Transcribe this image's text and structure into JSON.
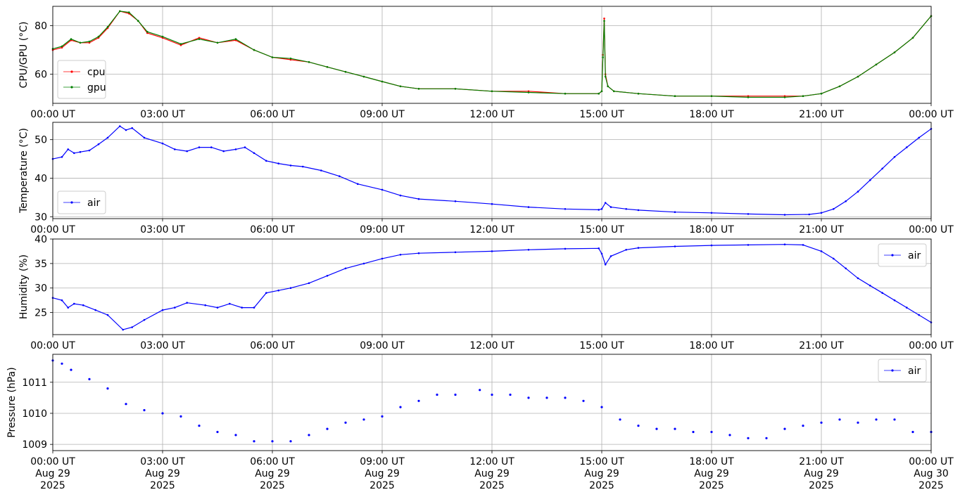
{
  "chart_data": [
    {
      "type": "line",
      "ylabel": "CPU/GPU (°C)",
      "ylim": [
        48,
        88
      ],
      "yticks": [
        60,
        80
      ],
      "xlim": [
        "2025-08-29T00:00",
        "2025-08-30T00:00"
      ],
      "xtick_labels": [
        "00:00 UT",
        "03:00 UT",
        "06:00 UT",
        "09:00 UT",
        "12:00 UT",
        "15:00 UT",
        "18:00 UT",
        "21:00 UT",
        "00:00 UT"
      ],
      "grid": true,
      "legend_position": "lower-left",
      "series": [
        {
          "name": "cpu",
          "color": "#ff0000",
          "x": [
            "2025-08-29T00:00",
            "2025-08-29T00:15",
            "2025-08-29T00:30",
            "2025-08-29T00:45",
            "2025-08-29T01:00",
            "2025-08-29T01:15",
            "2025-08-29T01:30",
            "2025-08-29T01:50",
            "2025-08-29T02:05",
            "2025-08-29T02:20",
            "2025-08-29T02:35",
            "2025-08-29T03:00",
            "2025-08-29T03:30",
            "2025-08-29T04:00",
            "2025-08-29T04:30",
            "2025-08-29T05:00",
            "2025-08-29T05:30",
            "2025-08-29T06:00",
            "2025-08-29T06:30",
            "2025-08-29T07:00",
            "2025-08-29T07:30",
            "2025-08-29T08:00",
            "2025-08-29T08:30",
            "2025-08-29T09:00",
            "2025-08-29T09:30",
            "2025-08-29T10:00",
            "2025-08-29T11:00",
            "2025-08-29T12:00",
            "2025-08-29T13:00",
            "2025-08-29T14:00",
            "2025-08-29T14:55",
            "2025-08-29T15:00",
            "2025-08-29T15:02",
            "2025-08-29T15:04",
            "2025-08-29T15:06",
            "2025-08-29T15:10",
            "2025-08-29T15:20",
            "2025-08-29T16:00",
            "2025-08-29T17:00",
            "2025-08-29T18:00",
            "2025-08-29T19:00",
            "2025-08-29T20:00",
            "2025-08-29T20:30",
            "2025-08-29T21:00",
            "2025-08-29T21:30",
            "2025-08-29T22:00",
            "2025-08-29T22:30",
            "2025-08-29T23:00",
            "2025-08-29T23:30",
            "2025-08-30T00:00"
          ],
          "y": [
            70,
            71,
            74,
            73,
            73,
            75,
            79,
            86,
            85,
            82,
            77,
            75,
            72,
            75,
            73,
            74,
            70,
            67,
            66,
            65,
            63,
            61,
            59,
            57,
            55,
            54,
            54,
            53,
            53,
            52,
            52,
            53,
            68,
            83,
            60,
            55,
            53,
            52,
            51,
            51,
            51,
            51,
            51,
            52,
            55,
            59,
            64,
            69,
            75,
            84
          ]
        },
        {
          "name": "gpu",
          "color": "#008000",
          "x": [
            "2025-08-29T00:00",
            "2025-08-29T00:15",
            "2025-08-29T00:30",
            "2025-08-29T00:45",
            "2025-08-29T01:00",
            "2025-08-29T01:15",
            "2025-08-29T01:30",
            "2025-08-29T01:50",
            "2025-08-29T02:05",
            "2025-08-29T02:20",
            "2025-08-29T02:35",
            "2025-08-29T03:00",
            "2025-08-29T03:30",
            "2025-08-29T04:00",
            "2025-08-29T04:30",
            "2025-08-29T05:00",
            "2025-08-29T05:30",
            "2025-08-29T06:00",
            "2025-08-29T06:30",
            "2025-08-29T07:00",
            "2025-08-29T07:30",
            "2025-08-29T08:00",
            "2025-08-29T08:30",
            "2025-08-29T09:00",
            "2025-08-29T09:30",
            "2025-08-29T10:00",
            "2025-08-29T11:00",
            "2025-08-29T12:00",
            "2025-08-29T13:00",
            "2025-08-29T14:00",
            "2025-08-29T14:55",
            "2025-08-29T15:00",
            "2025-08-29T15:02",
            "2025-08-29T15:04",
            "2025-08-29T15:06",
            "2025-08-29T15:10",
            "2025-08-29T15:20",
            "2025-08-29T16:00",
            "2025-08-29T17:00",
            "2025-08-29T18:00",
            "2025-08-29T19:00",
            "2025-08-29T20:00",
            "2025-08-29T20:30",
            "2025-08-29T21:00",
            "2025-08-29T21:30",
            "2025-08-29T22:00",
            "2025-08-29T22:30",
            "2025-08-29T23:00",
            "2025-08-29T23:30",
            "2025-08-30T00:00"
          ],
          "y": [
            70.5,
            71.5,
            74.5,
            73,
            73.5,
            75.5,
            79.5,
            86,
            85.5,
            82,
            77.5,
            75.5,
            72.5,
            74.5,
            73,
            74.5,
            70,
            67,
            66.5,
            65,
            63,
            61,
            59,
            57,
            55,
            54,
            54,
            53,
            52.5,
            52,
            52,
            53,
            67,
            82,
            59,
            55,
            53,
            52,
            51,
            51,
            50.5,
            50.5,
            51,
            52,
            55,
            59,
            64,
            69,
            75,
            84
          ]
        }
      ]
    },
    {
      "type": "line",
      "ylabel": "Temperature (°C)",
      "ylim": [
        29.5,
        54.5
      ],
      "yticks": [
        30,
        40,
        50
      ],
      "xlim": [
        "2025-08-29T00:00",
        "2025-08-30T00:00"
      ],
      "xtick_labels": [
        "00:00 UT",
        "03:00 UT",
        "06:00 UT",
        "09:00 UT",
        "12:00 UT",
        "15:00 UT",
        "18:00 UT",
        "21:00 UT",
        "00:00 UT"
      ],
      "grid": true,
      "legend_position": "lower-left",
      "series": [
        {
          "name": "air",
          "color": "#0000ff",
          "x": [
            "2025-08-29T00:00",
            "2025-08-29T00:15",
            "2025-08-29T00:25",
            "2025-08-29T00:35",
            "2025-08-29T00:45",
            "2025-08-29T01:00",
            "2025-08-29T01:15",
            "2025-08-29T01:30",
            "2025-08-29T01:50",
            "2025-08-29T02:00",
            "2025-08-29T02:10",
            "2025-08-29T02:30",
            "2025-08-29T03:00",
            "2025-08-29T03:20",
            "2025-08-29T03:40",
            "2025-08-29T04:00",
            "2025-08-29T04:20",
            "2025-08-29T04:40",
            "2025-08-29T05:00",
            "2025-08-29T05:15",
            "2025-08-29T05:30",
            "2025-08-29T05:50",
            "2025-08-29T06:10",
            "2025-08-29T06:30",
            "2025-08-29T06:50",
            "2025-08-29T07:20",
            "2025-08-29T07:50",
            "2025-08-29T08:20",
            "2025-08-29T09:00",
            "2025-08-29T09:30",
            "2025-08-29T10:00",
            "2025-08-29T11:00",
            "2025-08-29T12:00",
            "2025-08-29T13:00",
            "2025-08-29T14:00",
            "2025-08-29T14:55",
            "2025-08-29T15:00",
            "2025-08-29T15:06",
            "2025-08-29T15:15",
            "2025-08-29T15:40",
            "2025-08-29T16:00",
            "2025-08-29T17:00",
            "2025-08-29T18:00",
            "2025-08-29T19:00",
            "2025-08-29T20:00",
            "2025-08-29T20:40",
            "2025-08-29T21:00",
            "2025-08-29T21:20",
            "2025-08-29T21:40",
            "2025-08-29T22:00",
            "2025-08-29T22:20",
            "2025-08-29T22:40",
            "2025-08-29T23:00",
            "2025-08-29T23:20",
            "2025-08-29T23:40",
            "2025-08-30T00:00"
          ],
          "y": [
            45,
            45.5,
            47.5,
            46.5,
            46.8,
            47.2,
            48.8,
            50.5,
            53.5,
            52.5,
            53,
            50.5,
            49,
            47.5,
            47,
            48,
            48,
            47,
            47.5,
            48,
            46.5,
            44.5,
            43.8,
            43.3,
            43,
            42,
            40.5,
            38.5,
            37,
            35.5,
            34.6,
            34,
            33.3,
            32.5,
            32,
            31.8,
            32,
            33.6,
            32.5,
            32,
            31.7,
            31.2,
            31,
            30.7,
            30.5,
            30.6,
            31,
            32,
            34,
            36.5,
            39.5,
            42.5,
            45.5,
            48,
            50.5,
            52.8
          ]
        }
      ]
    },
    {
      "type": "line",
      "ylabel": "Humidity (%)",
      "ylim": [
        20.5,
        40
      ],
      "yticks": [
        25,
        30,
        35,
        40
      ],
      "xlim": [
        "2025-08-29T00:00",
        "2025-08-30T00:00"
      ],
      "xtick_labels": [
        "00:00 UT",
        "03:00 UT",
        "06:00 UT",
        "09:00 UT",
        "12:00 UT",
        "15:00 UT",
        "18:00 UT",
        "21:00 UT",
        "00:00 UT"
      ],
      "grid": true,
      "legend_position": "upper-right",
      "series": [
        {
          "name": "air",
          "color": "#0000ff",
          "x": [
            "2025-08-29T00:00",
            "2025-08-29T00:15",
            "2025-08-29T00:25",
            "2025-08-29T00:35",
            "2025-08-29T00:50",
            "2025-08-29T01:10",
            "2025-08-29T01:30",
            "2025-08-29T01:55",
            "2025-08-29T02:10",
            "2025-08-29T02:30",
            "2025-08-29T03:00",
            "2025-08-29T03:20",
            "2025-08-29T03:40",
            "2025-08-29T04:10",
            "2025-08-29T04:30",
            "2025-08-29T04:50",
            "2025-08-29T05:10",
            "2025-08-29T05:30",
            "2025-08-29T05:50",
            "2025-08-29T06:10",
            "2025-08-29T06:30",
            "2025-08-29T07:00",
            "2025-08-29T07:30",
            "2025-08-29T08:00",
            "2025-08-29T08:30",
            "2025-08-29T09:00",
            "2025-08-29T09:30",
            "2025-08-29T10:00",
            "2025-08-29T11:00",
            "2025-08-29T12:00",
            "2025-08-29T13:00",
            "2025-08-29T14:00",
            "2025-08-29T14:55",
            "2025-08-29T15:00",
            "2025-08-29T15:06",
            "2025-08-29T15:15",
            "2025-08-29T15:40",
            "2025-08-29T16:00",
            "2025-08-29T17:00",
            "2025-08-29T18:00",
            "2025-08-29T19:00",
            "2025-08-29T20:00",
            "2025-08-29T20:30",
            "2025-08-29T21:00",
            "2025-08-29T21:20",
            "2025-08-29T21:40",
            "2025-08-29T22:00",
            "2025-08-29T22:20",
            "2025-08-29T22:40",
            "2025-08-29T23:00",
            "2025-08-29T23:20",
            "2025-08-29T23:40",
            "2025-08-30T00:00"
          ],
          "y": [
            28,
            27.5,
            26,
            26.8,
            26.5,
            25.5,
            24.5,
            21.5,
            22,
            23.5,
            25.5,
            26,
            27,
            26.5,
            26,
            26.8,
            26,
            26,
            29,
            29.5,
            30,
            31,
            32.5,
            34,
            35,
            36,
            36.8,
            37.1,
            37.3,
            37.5,
            37.8,
            38,
            38.1,
            37,
            34.8,
            36.5,
            37.8,
            38.2,
            38.5,
            38.7,
            38.8,
            38.9,
            38.8,
            37.5,
            36,
            34,
            32,
            30.5,
            29,
            27.5,
            26,
            24.5,
            23
          ]
        }
      ]
    },
    {
      "type": "scatter",
      "ylabel": "Pressure (hPa)",
      "ylim": [
        1008.8,
        1011.9
      ],
      "yticks": [
        1009,
        1010,
        1011
      ],
      "xlim": [
        "2025-08-29T00:00",
        "2025-08-30T00:00"
      ],
      "xtick_labels": [
        [
          "00:00 UT",
          "Aug 29",
          "2025"
        ],
        [
          "03:00 UT",
          "Aug 29",
          "2025"
        ],
        [
          "06:00 UT",
          "Aug 29",
          "2025"
        ],
        [
          "09:00 UT",
          "Aug 29",
          "2025"
        ],
        [
          "12:00 UT",
          "Aug 29",
          "2025"
        ],
        [
          "15:00 UT",
          "Aug 29",
          "2025"
        ],
        [
          "18:00 UT",
          "Aug 29",
          "2025"
        ],
        [
          "21:00 UT",
          "Aug 29",
          "2025"
        ],
        [
          "00:00 UT",
          "Aug 30",
          "2025"
        ]
      ],
      "grid": true,
      "legend_position": "upper-right",
      "series": [
        {
          "name": "air",
          "color": "#0000ff",
          "x": [
            "2025-08-29T00:00",
            "2025-08-29T00:15",
            "2025-08-29T00:30",
            "2025-08-29T01:00",
            "2025-08-29T01:30",
            "2025-08-29T02:00",
            "2025-08-29T02:30",
            "2025-08-29T03:00",
            "2025-08-29T03:30",
            "2025-08-29T04:00",
            "2025-08-29T04:30",
            "2025-08-29T05:00",
            "2025-08-29T05:30",
            "2025-08-29T06:00",
            "2025-08-29T06:30",
            "2025-08-29T07:00",
            "2025-08-29T07:30",
            "2025-08-29T08:00",
            "2025-08-29T08:30",
            "2025-08-29T09:00",
            "2025-08-29T09:30",
            "2025-08-29T10:00",
            "2025-08-29T10:30",
            "2025-08-29T11:00",
            "2025-08-29T11:40",
            "2025-08-29T12:00",
            "2025-08-29T12:30",
            "2025-08-29T13:00",
            "2025-08-29T13:30",
            "2025-08-29T14:00",
            "2025-08-29T14:30",
            "2025-08-29T15:00",
            "2025-08-29T15:30",
            "2025-08-29T16:00",
            "2025-08-29T16:30",
            "2025-08-29T17:00",
            "2025-08-29T17:30",
            "2025-08-29T18:00",
            "2025-08-29T18:30",
            "2025-08-29T19:00",
            "2025-08-29T19:30",
            "2025-08-29T20:00",
            "2025-08-29T20:30",
            "2025-08-29T21:00",
            "2025-08-29T21:30",
            "2025-08-29T22:00",
            "2025-08-29T22:30",
            "2025-08-29T23:00",
            "2025-08-29T23:30",
            "2025-08-30T00:00"
          ],
          "y": [
            1011.7,
            1011.6,
            1011.4,
            1011.1,
            1010.8,
            1010.3,
            1010.1,
            1010.0,
            1009.9,
            1009.6,
            1009.4,
            1009.3,
            1009.1,
            1009.1,
            1009.1,
            1009.3,
            1009.5,
            1009.7,
            1009.8,
            1009.9,
            1010.2,
            1010.4,
            1010.6,
            1010.6,
            1010.75,
            1010.6,
            1010.6,
            1010.5,
            1010.5,
            1010.5,
            1010.4,
            1010.2,
            1009.8,
            1009.6,
            1009.5,
            1009.5,
            1009.4,
            1009.4,
            1009.3,
            1009.2,
            1009.2,
            1009.5,
            1009.6,
            1009.7,
            1009.8,
            1009.7,
            1009.8,
            1009.8,
            1009.4,
            1009.4
          ]
        }
      ]
    }
  ]
}
